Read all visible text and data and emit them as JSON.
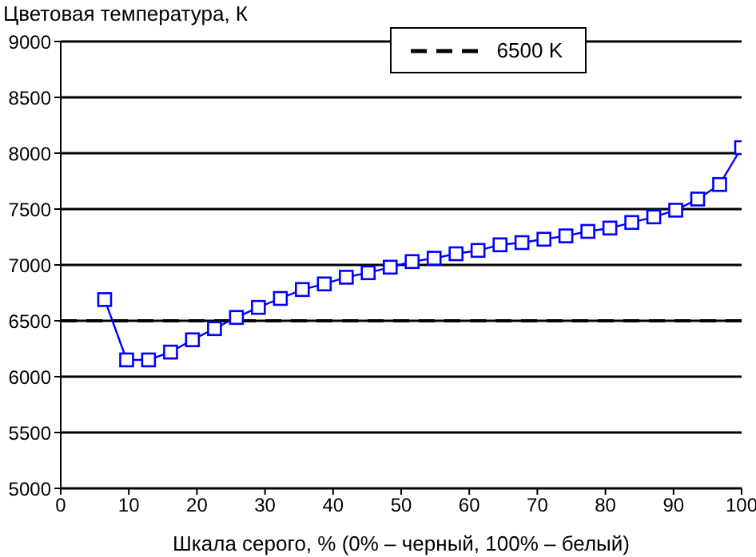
{
  "chart_data": {
    "type": "line",
    "ylabel": "Цветовая температура, К",
    "xlabel": "Шкала серого, % (0% – черный, 100% – белый)",
    "x": [
      6.45,
      9.68,
      12.9,
      16.13,
      19.35,
      22.58,
      25.81,
      29.03,
      32.26,
      35.48,
      38.71,
      41.94,
      45.16,
      48.39,
      51.61,
      54.84,
      58.06,
      61.29,
      64.52,
      67.74,
      70.97,
      74.19,
      77.42,
      80.65,
      83.87,
      87.1,
      90.32,
      93.55,
      96.77,
      100
    ],
    "series": [
      {
        "color": "#0000ff",
        "values": [
          6690,
          6150,
          6150,
          6220,
          6330,
          6430,
          6530,
          6620,
          6700,
          6780,
          6830,
          6890,
          6930,
          6980,
          7030,
          7060,
          7100,
          7130,
          7180,
          7200,
          7230,
          7260,
          7300,
          7330,
          7380,
          7430,
          7490,
          7590,
          7720,
          8050
        ]
      }
    ],
    "xlim": [
      0,
      100
    ],
    "xticks": [
      0,
      10,
      20,
      30,
      40,
      50,
      60,
      70,
      80,
      90,
      100
    ],
    "ylim": [
      5000,
      9000
    ],
    "yticks": [
      5000,
      5500,
      6000,
      6500,
      7000,
      7500,
      8000,
      8500,
      9000
    ],
    "ref_lines": [
      {
        "axis": "y",
        "value": 6500,
        "label": "6500 K",
        "color": "#000000",
        "line_style": "dashed"
      }
    ],
    "grid": "y",
    "legend": "top right",
    "marker": "square",
    "line_style": "solid"
  }
}
